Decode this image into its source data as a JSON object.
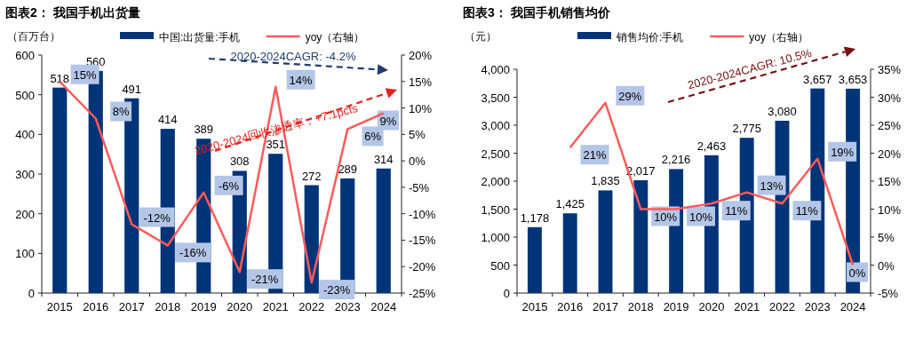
{
  "chart_data": [
    {
      "type": "bar",
      "title": "图表2：  我国手机出货量",
      "ylabel": "（百万台）",
      "legend": "top",
      "categories": [
        "2015",
        "2016",
        "2017",
        "2018",
        "2019",
        "2020",
        "2021",
        "2022",
        "2023",
        "2024"
      ],
      "series": [
        {
          "name": "中国:出货量:手机",
          "type": "bar",
          "color": "#003478",
          "values": [
            518,
            560,
            491,
            414,
            389,
            308,
            351,
            272,
            289,
            314
          ],
          "value_labels": [
            "518",
            "560",
            "491",
            "414",
            "389",
            "308",
            "351",
            "272",
            "289",
            "314"
          ]
        },
        {
          "name": "yoy（右轴）",
          "type": "line",
          "axis": "y2",
          "color": "#ff5b5b",
          "values": [
            15,
            8,
            -12,
            -16,
            -6,
            -21,
            14,
            -23,
            6,
            9
          ],
          "value_labels": [
            "15%",
            "8%",
            "-12%",
            "-16%",
            "-6%",
            "-21%",
            "14%",
            "-23%",
            "6%",
            "9%"
          ]
        }
      ],
      "ylim": [
        0,
        600
      ],
      "yticks": [
        0,
        100,
        200,
        300,
        400,
        500,
        600
      ],
      "y2lim": [
        -25,
        20
      ],
      "y2ticks": [
        {
          "value": -25,
          "label": "-25%"
        },
        {
          "value": -20,
          "label": "-20%"
        },
        {
          "value": -15,
          "label": "-15%"
        },
        {
          "value": -10,
          "label": "-10%"
        },
        {
          "value": -5,
          "label": "-5%"
        },
        {
          "value": 0,
          "label": "0%"
        },
        {
          "value": 5,
          "label": "5%"
        },
        {
          "value": 10,
          "label": "10%"
        },
        {
          "value": 15,
          "label": "15%"
        },
        {
          "value": 20,
          "label": "20%"
        }
      ],
      "annotations": [
        "2020-2024CAGR: -4.2%",
        "2020-2024回收渗透率：+7.1pcts"
      ]
    },
    {
      "type": "bar",
      "title": "图表3：  我国手机销售均价",
      "ylabel": "（元）",
      "legend": "top",
      "categories": [
        "2015",
        "2016",
        "2017",
        "2018",
        "2019",
        "2020",
        "2021",
        "2022",
        "2023",
        "2024"
      ],
      "series": [
        {
          "name": "销售均价:手机",
          "type": "bar",
          "color": "#003478",
          "values": [
            1178,
            1425,
            1835,
            2017,
            2216,
            2463,
            2775,
            3080,
            3657,
            3653
          ],
          "value_labels": [
            "1,178",
            "1,425",
            "1,835",
            "2,017",
            "2,216",
            "2,463",
            "2,775",
            "3,080",
            "3,657",
            "3,653"
          ]
        },
        {
          "name": "yoy（右轴）",
          "type": "line",
          "axis": "y2",
          "color": "#ff5b5b",
          "values": [
            null,
            21,
            29,
            10,
            10,
            11,
            13,
            11,
            19,
            0
          ],
          "value_labels": [
            null,
            "21%",
            "29%",
            "10%",
            "10%",
            "11%",
            "13%",
            "11%",
            "19%",
            "0%"
          ]
        }
      ],
      "ylim": [
        0,
        4000
      ],
      "yticks": [
        {
          "value": 0,
          "label": "0"
        },
        {
          "value": 500,
          "label": "500"
        },
        {
          "value": 1000,
          "label": "1,000"
        },
        {
          "value": 1500,
          "label": "1,500"
        },
        {
          "value": 2000,
          "label": "2,000"
        },
        {
          "value": 2500,
          "label": "2,500"
        },
        {
          "value": 3000,
          "label": "3,000"
        },
        {
          "value": 3500,
          "label": "3,500"
        },
        {
          "value": 4000,
          "label": "4,000"
        }
      ],
      "y2lim": [
        -5,
        35
      ],
      "y2ticks": [
        {
          "value": -5,
          "label": "-5%"
        },
        {
          "value": 0,
          "label": "0%"
        },
        {
          "value": 5,
          "label": "5%"
        },
        {
          "value": 10,
          "label": "10%"
        },
        {
          "value": 15,
          "label": "15%"
        },
        {
          "value": 20,
          "label": "20%"
        },
        {
          "value": 25,
          "label": "25%"
        },
        {
          "value": 30,
          "label": "30%"
        },
        {
          "value": 35,
          "label": "35%"
        }
      ],
      "annotations": [
        "2020-2024CAGR: 10.5%"
      ]
    }
  ]
}
